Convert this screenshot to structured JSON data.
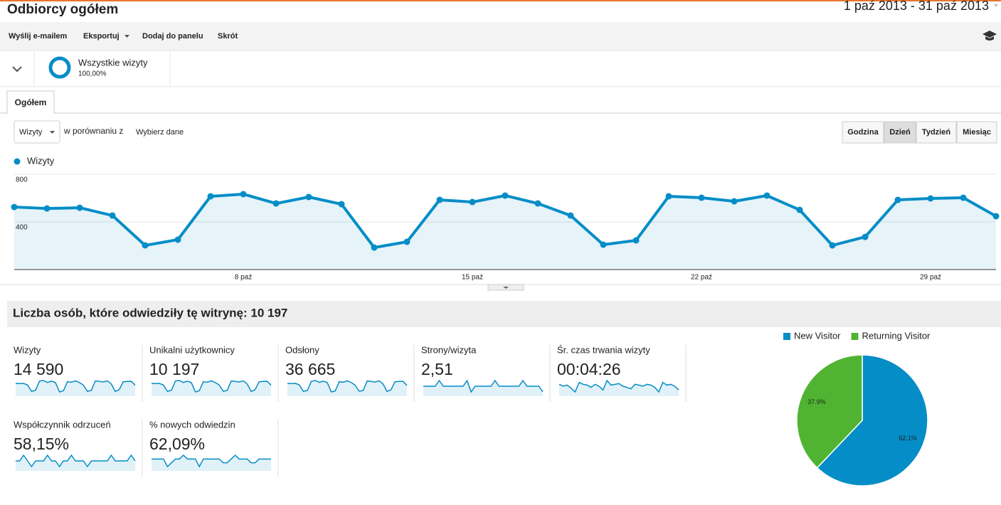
{
  "header": {
    "title": "Odbiorcy ogółem",
    "date_range": "1 paź 2013 - 31 paź 2013"
  },
  "toolbar": [
    "Wyślij e-mailem",
    "Eksportuj",
    "Dodaj do panelu",
    "Skrót"
  ],
  "segment": {
    "name": "Wszystkie wizyty",
    "share": "100,00%"
  },
  "tab": "Ogółem",
  "controls": {
    "metric": "Wizyty",
    "compare_text": "w porównaniu z",
    "compare_link": "Wybierz dane",
    "granularity": [
      "Godzina",
      "Dzień",
      "Tydzień",
      "Miesiąc"
    ],
    "active_index": 1
  },
  "chart_data": [
    {
      "type": "line",
      "categories": [
        null,
        null,
        null,
        null,
        null,
        null,
        null,
        "8 paź",
        null,
        null,
        null,
        null,
        null,
        null,
        "15 paź",
        null,
        null,
        null,
        null,
        null,
        null,
        "22 paź",
        null,
        null,
        null,
        null,
        null,
        null,
        "29 paź",
        null,
        null
      ],
      "series": [
        {
          "name": "Wizyty",
          "color": "#058dc7",
          "values": [
            525,
            513,
            519,
            454,
            203,
            251,
            615,
            633,
            555,
            609,
            549,
            185,
            233,
            585,
            567,
            621,
            555,
            454,
            209,
            245,
            615,
            603,
            573,
            621,
            501,
            203,
            274,
            585,
            597,
            603,
            448
          ]
        }
      ],
      "ylim": [
        0,
        800
      ],
      "yticks": [
        400,
        800
      ],
      "grid": true
    },
    {
      "type": "pie",
      "categories": [
        "New Visitor",
        "Returning Visitor"
      ],
      "values": [
        62.1,
        37.9
      ],
      "value_labels": [
        "62.1%",
        "37.9%"
      ],
      "colors": [
        "#058dc7",
        "#50b432"
      ],
      "legend": "top"
    }
  ],
  "summary": {
    "title": "Liczba osób, które odwiedziły tę witrynę: 10 197",
    "metrics": [
      {
        "label": "Wizyty",
        "value": "14 590",
        "trend": [
          525,
          513,
          519,
          454,
          203,
          251,
          615,
          633,
          555,
          609,
          549,
          185,
          233,
          585,
          567,
          621,
          555,
          454,
          209,
          245,
          615,
          603,
          573,
          621,
          501,
          203,
          274,
          585,
          597,
          603,
          448
        ]
      },
      {
        "label": "Unikalni użytkownicy",
        "value": "10 197",
        "trend": [
          368,
          359,
          363,
          318,
          142,
          176,
          431,
          443,
          389,
          426,
          384,
          130,
          163,
          410,
          397,
          435,
          389,
          318,
          146,
          172,
          431,
          422,
          401,
          435,
          351,
          142,
          192,
          410,
          418,
          422,
          314
        ]
      },
      {
        "label": "Odsłony",
        "value": "36 665",
        "trend": [
          1300,
          1280,
          1310,
          1150,
          520,
          610,
          1500,
          1580,
          1400,
          1520,
          1380,
          470,
          560,
          1460,
          1420,
          1550,
          1390,
          1130,
          540,
          600,
          1530,
          1500,
          1420,
          1560,
          1250,
          510,
          680,
          1470,
          1490,
          1500,
          1100
        ]
      },
      {
        "label": "Strony/wizyta",
        "value": "2,51",
        "trend": [
          2.5,
          2.5,
          2.5,
          2.5,
          2.6,
          2.5,
          2.5,
          2.5,
          2.5,
          2.5,
          2.5,
          2.6,
          2.4,
          2.5,
          2.5,
          2.5,
          2.5,
          2.5,
          2.6,
          2.5,
          2.5,
          2.5,
          2.5,
          2.5,
          2.5,
          2.6,
          2.5,
          2.5,
          2.5,
          2.5,
          2.4
        ]
      },
      {
        "label": "Śr. czas trwania wizyty",
        "value": "00:04:26",
        "trend": [
          270,
          265,
          268,
          260,
          250,
          275,
          270,
          268,
          262,
          270,
          265,
          255,
          280,
          268,
          270,
          272,
          265,
          262,
          258,
          270,
          268,
          265,
          270,
          268,
          262,
          250,
          275,
          268,
          270,
          265,
          255
        ]
      },
      {
        "label": "Współczynnik odrzuceń",
        "value": "58,15%",
        "trend": [
          58,
          58,
          59,
          58,
          57,
          58,
          58,
          58,
          59,
          58,
          58,
          57,
          58,
          58,
          59,
          58,
          58,
          58,
          57,
          58,
          58,
          58,
          58,
          58,
          59,
          58,
          58,
          58,
          58,
          59,
          58
        ]
      },
      {
        "label": "% nowych odwiedzin",
        "value": "62,09%",
        "trend": [
          62,
          62,
          62,
          62,
          60,
          61,
          62,
          62,
          63,
          62,
          62,
          62,
          60,
          62,
          62,
          62,
          62,
          62,
          61,
          61,
          62,
          63,
          62,
          62,
          62,
          61,
          61,
          62,
          62,
          62,
          62
        ]
      }
    ]
  }
}
